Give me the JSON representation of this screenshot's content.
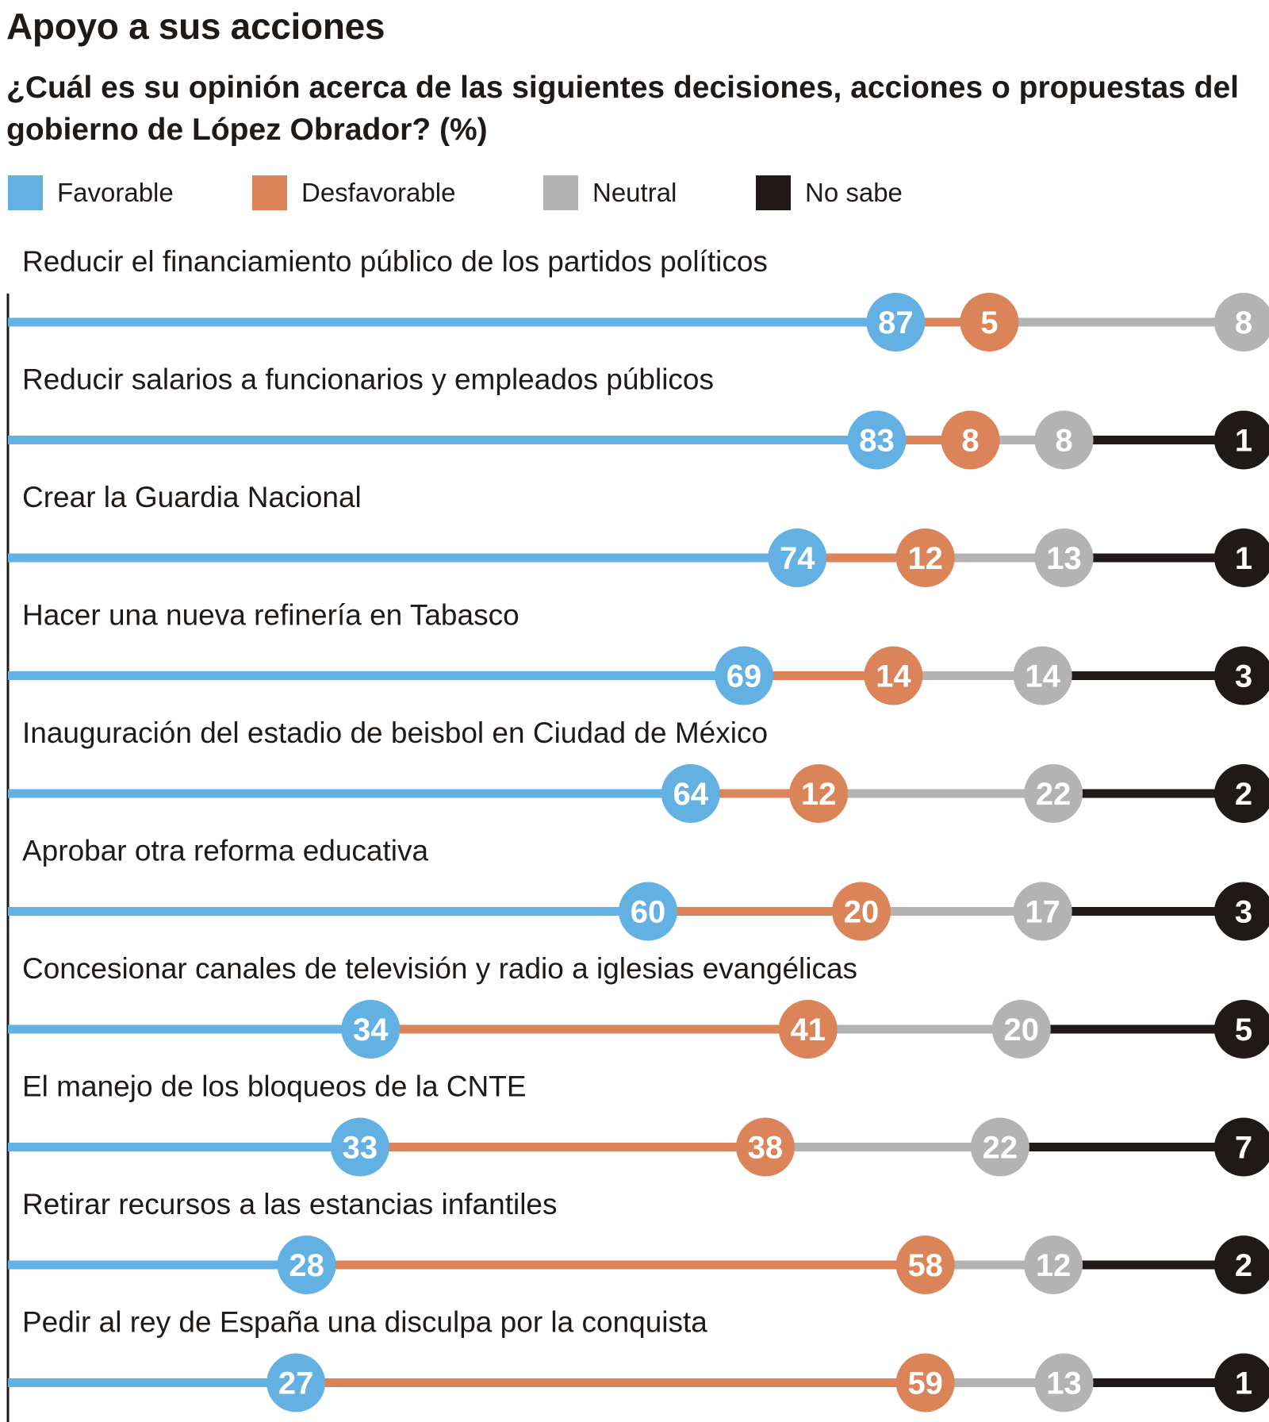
{
  "title": "Apoyo a sus acciones",
  "subtitle": "¿Cuál es su opinión acerca de las siguientes decisiones, acciones o propuestas del gobierno de López Obrador? (%)",
  "legend": [
    {
      "name": "Favorable",
      "color": "#63b0e3"
    },
    {
      "name": "Desfavorable",
      "color": "#db8459"
    },
    {
      "name": "Neutral",
      "color": "#b3b3b3"
    },
    {
      "name": "No sabe",
      "color": "#1f1a17"
    }
  ],
  "chart_data": {
    "type": "bar",
    "title": "Apoyo a sus acciones",
    "subtitle": "¿Cuál es su opinión acerca de las siguientes decisiones, acciones o propuestas del gobierno de López Obrador? (%)",
    "xlabel": "",
    "ylabel": "",
    "stacked": true,
    "legend_position": "top",
    "grid": false,
    "xlim": [
      0,
      100
    ],
    "categories": [
      "Reducir el financiamiento público de los partidos políticos",
      "Reducir salarios a funcionarios y empleados públicos",
      "Crear la Guardia Nacional",
      "Hacer una nueva refinería en Tabasco",
      "Inauguración del estadio de beisbol en Ciudad de México",
      "Aprobar otra reforma educativa",
      "Concesionar canales de televisión y radio a iglesias evangélicas",
      "El manejo de los bloqueos de la CNTE",
      "Retirar recursos a las estancias infantiles",
      "Pedir al rey de España una disculpa por la conquista"
    ],
    "series": [
      {
        "name": "Favorable",
        "color": "#63b0e3",
        "values": [
          87,
          83,
          74,
          69,
          64,
          60,
          34,
          33,
          28,
          27
        ]
      },
      {
        "name": "Desfavorable",
        "color": "#db8459",
        "values": [
          5,
          8,
          12,
          14,
          12,
          20,
          41,
          38,
          58,
          59
        ]
      },
      {
        "name": "Neutral",
        "color": "#b3b3b3",
        "values": [
          8,
          8,
          13,
          14,
          22,
          17,
          20,
          22,
          12,
          13
        ]
      },
      {
        "name": "No sabe",
        "color": "#1f1a17",
        "values": [
          null,
          1,
          1,
          3,
          2,
          3,
          5,
          7,
          2,
          1
        ]
      }
    ]
  }
}
